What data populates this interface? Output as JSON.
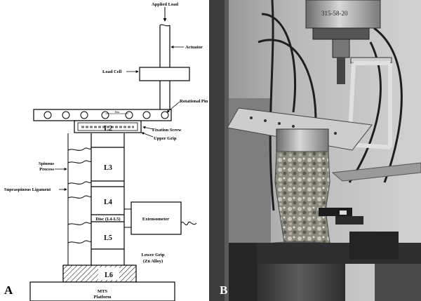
{
  "panel_a": {
    "letter": "A",
    "labels": {
      "applied_load": "Applied Load",
      "actuator": "Actuator",
      "load_cell": "Load Cell",
      "rotational_pin": "Rotational Pin",
      "fixation_screw": "Fixation Screw",
      "upper_grip": "Upper Grip",
      "spinous_process_1": "Spinous",
      "spinous_process_2": "Process",
      "supraspinous_ligament": "Supraspinous Ligament",
      "extensometer": "Extensometer",
      "lower_grip_1": "Lower Grip",
      "lower_grip_2": "(Zn Alloy)",
      "mts_1": "MTS",
      "mts_2": "Platform",
      "dist": "Dist"
    },
    "vertebrae": [
      "L2",
      "L3",
      "L4",
      "Disc (L4-L5)",
      "L5",
      "L6"
    ]
  },
  "panel_b": {
    "letter": "B",
    "cylinder_text": "315-58-20"
  }
}
